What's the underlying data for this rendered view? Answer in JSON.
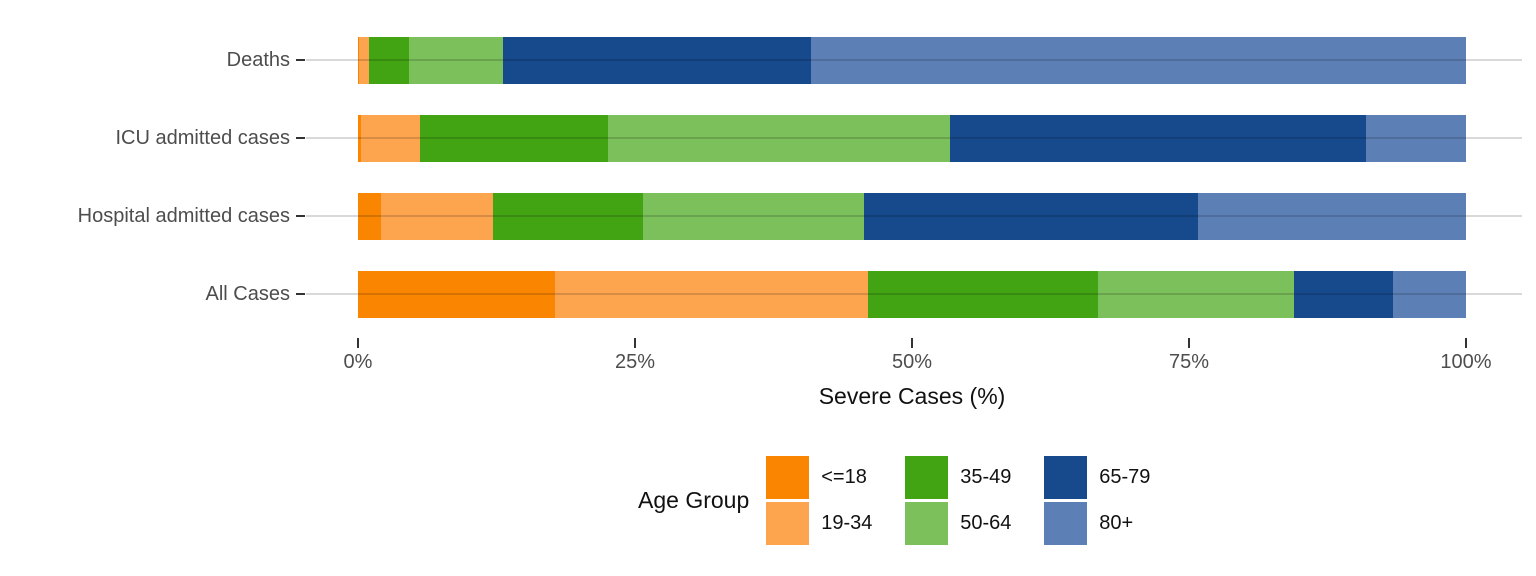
{
  "chart_data": {
    "type": "bar",
    "orientation": "horizontal",
    "stacked": true,
    "unit": "percent",
    "title": "",
    "xlabel": "Severe Cases (%)",
    "ylabel": "",
    "xlim": [
      0,
      100
    ],
    "x_ticks": [
      {
        "value": 0,
        "label": "0%"
      },
      {
        "value": 25,
        "label": "25%"
      },
      {
        "value": 50,
        "label": "50%"
      },
      {
        "value": 75,
        "label": "75%"
      },
      {
        "value": 100,
        "label": "100%"
      }
    ],
    "grid": "horizontal-only",
    "categories": [
      "Deaths",
      "ICU admitted cases",
      "Hospital admitted cases",
      "All Cases"
    ],
    "series": [
      {
        "name": "<=18",
        "color": "#FA8500",
        "values": [
          0.1,
          0.3,
          2.1,
          17.8
        ]
      },
      {
        "name": "19-34",
        "color": "#FDA44F",
        "values": [
          0.9,
          5.3,
          10.1,
          28.2
        ]
      },
      {
        "name": "35-49",
        "color": "#42A413",
        "values": [
          3.6,
          17.0,
          13.5,
          20.8
        ]
      },
      {
        "name": "50-64",
        "color": "#7CC05C",
        "values": [
          8.5,
          30.8,
          20.0,
          17.7
        ]
      },
      {
        "name": "65-79",
        "color": "#17498D",
        "values": [
          27.8,
          37.6,
          30.1,
          8.9
        ]
      },
      {
        "name": "80+",
        "color": "#5C80B5",
        "values": [
          59.1,
          9.0,
          24.2,
          6.6
        ]
      }
    ],
    "legend_title": "Age Group",
    "legend_position": "bottom",
    "legend_layout": "2-rows-3-columns"
  }
}
